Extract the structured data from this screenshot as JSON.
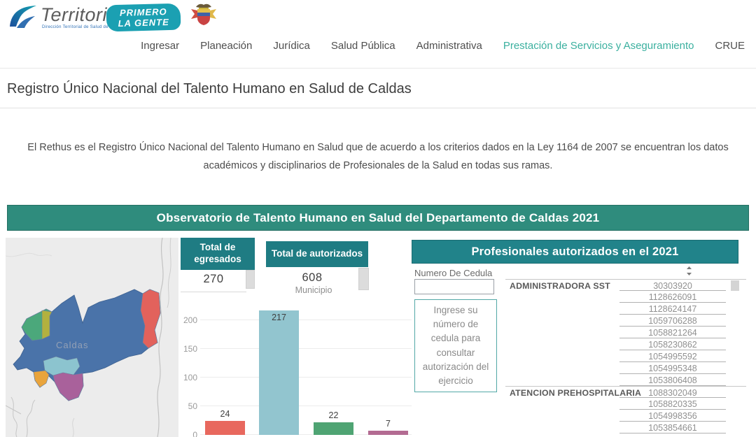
{
  "header": {
    "logo": {
      "brand": "Territorial",
      "subtitle": "Dirección Territorial de Salud de Caldas",
      "badge_line1": "PRIMERO",
      "badge_line2": "LA GENTE"
    },
    "nav": [
      {
        "label": "Ingresar",
        "active": false
      },
      {
        "label": "Planeación",
        "active": false
      },
      {
        "label": "Jurídica",
        "active": false
      },
      {
        "label": "Salud Pública",
        "active": false
      },
      {
        "label": "Administrativa",
        "active": false
      },
      {
        "label": "Prestación de Servicios y Aseguramiento",
        "active": true
      },
      {
        "label": "CRUE",
        "active": false
      }
    ]
  },
  "page": {
    "title": "Registro Único Nacional del Talento Humano en Salud de Caldas",
    "intro": "El Rethus es el Registro Único Nacional del Talento Humano en Salud que de acuerdo a los criterios dados en la Ley 1164 de 2007 se encuentran los datos académicos y disciplinarios de Profesionales de la Salud en todas sus ramas."
  },
  "dashboard": {
    "banner": "Observatorio de Talento Humano  en Salud del Departamento de  Caldas 2021"
  },
  "map": {
    "region_label": "Caldas"
  },
  "stats": {
    "egresados": {
      "title": "Total de egresados",
      "value": "270"
    },
    "autorizados": {
      "title": "Total de autorizados",
      "value": "608"
    }
  },
  "chart_data": {
    "type": "bar",
    "title": "Municipio",
    "values": [
      24,
      217,
      22,
      7
    ],
    "value_labels": [
      "24",
      "217",
      "22",
      "7"
    ],
    "colors": [
      "#e8685e",
      "#92c5cf",
      "#4fa473",
      "#b36b92"
    ],
    "yticks": [
      0,
      50,
      100,
      150,
      200
    ],
    "ylim": [
      0,
      220
    ],
    "xlabel": "",
    "ylabel": "",
    "grid": true,
    "note": "x-axis category labels cut off at bottom edge of screenshot"
  },
  "panel": {
    "title": "Profesionales autorizados en el 2021",
    "cedula_label": "Numero De Cedula",
    "cedula_value": "",
    "instruction": "Ingrese su número de cedula para consultar autorización del ejercicio",
    "groups": [
      {
        "name": "ADMINISTRADORA SST",
        "ids": [
          "30303920",
          "1128626091",
          "1128624147",
          "1059706288",
          "1058821264",
          "1058230862",
          "1054995592",
          "1054995348",
          "1053806408"
        ]
      },
      {
        "name": "ATENCION PREHOSPITALARIA",
        "ids": [
          "1088302049",
          "1058820335",
          "1054998356",
          "1053854661"
        ]
      }
    ]
  },
  "colors": {
    "banner_teal": "#2f8c7d",
    "stat_header_teal": "#1f7c83",
    "panel_header_teal": "#21838a",
    "nav_active_teal": "#3bb09f",
    "map_main_blue": "#4a73a9",
    "map_green": "#4ba87b",
    "map_olive": "#b3b13f",
    "map_red": "#e2625c",
    "map_light_teal": "#8cc4cf",
    "map_orange": "#e9a43c",
    "map_purple": "#a9619b"
  }
}
